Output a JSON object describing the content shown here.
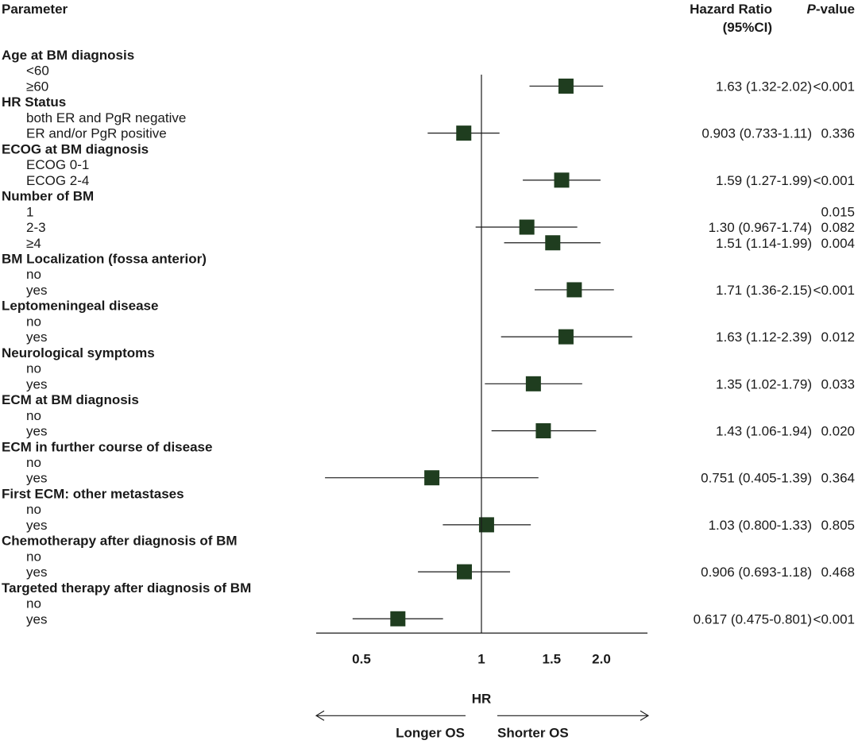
{
  "chart_data": {
    "type": "forest",
    "headers": {
      "parameter": "Parameter",
      "hr_line1": "Hazard Ratio",
      "hr_line2": "(95%CI)",
      "p_italic": "P",
      "p_rest": "-value"
    },
    "xscale": "log",
    "xlim": [
      0.38,
      2.5
    ],
    "xticks": [
      "0.5",
      "1",
      "1.5",
      "2.0"
    ],
    "xticks_values": [
      0.5,
      1,
      1.5,
      2.0
    ],
    "reference_line": 1,
    "xlabel": "HR",
    "arrow_left_label": "Longer OS",
    "arrow_right_label": "Shorter OS",
    "marker_color": "#1f3d1f",
    "groups": [
      {
        "name": "Age at BM diagnosis",
        "rows": [
          {
            "label": "<60"
          },
          {
            "label": "≥60",
            "hr": 1.63,
            "lo": 1.32,
            "hi": 2.02,
            "ci_text": "1.63 (1.32-2.02)",
            "p": "<0.001"
          }
        ]
      },
      {
        "name": "HR Status",
        "rows": [
          {
            "label": "both ER and PgR negative"
          },
          {
            "label": "ER and/or PgR positive",
            "hr": 0.903,
            "lo": 0.733,
            "hi": 1.11,
            "ci_text": "0.903 (0.733-1.11)",
            "p": "0.336"
          }
        ]
      },
      {
        "name": "ECOG at BM diagnosis",
        "rows": [
          {
            "label": "ECOG 0-1"
          },
          {
            "label": "ECOG 2-4",
            "hr": 1.59,
            "lo": 1.27,
            "hi": 1.99,
            "ci_text": "1.59 (1.27-1.99)",
            "p": "<0.001"
          }
        ]
      },
      {
        "name": "Number of BM",
        "rows": [
          {
            "label": "1",
            "p": "0.015"
          },
          {
            "label": "2-3",
            "hr": 1.3,
            "lo": 0.967,
            "hi": 1.74,
            "ci_text": "1.30 (0.967-1.74)",
            "p": "0.082"
          },
          {
            "label": "≥4",
            "hr": 1.51,
            "lo": 1.14,
            "hi": 1.99,
            "ci_text": "1.51 (1.14-1.99)",
            "p": "0.004"
          }
        ]
      },
      {
        "name": "BM Localization (fossa anterior)",
        "rows": [
          {
            "label": "no"
          },
          {
            "label": "yes",
            "hr": 1.71,
            "lo": 1.36,
            "hi": 2.15,
            "ci_text": "1.71 (1.36-2.15)",
            "p": "<0.001"
          }
        ]
      },
      {
        "name": "Leptomeningeal disease",
        "rows": [
          {
            "label": "no"
          },
          {
            "label": "yes",
            "hr": 1.63,
            "lo": 1.12,
            "hi": 2.39,
            "ci_text": "1.63 (1.12-2.39)",
            "p": "0.012"
          }
        ]
      },
      {
        "name": "Neurological symptoms",
        "rows": [
          {
            "label": "no"
          },
          {
            "label": "yes",
            "hr": 1.35,
            "lo": 1.02,
            "hi": 1.79,
            "ci_text": "1.35 (1.02-1.79)",
            "p": "0.033"
          }
        ]
      },
      {
        "name": "ECM at BM diagnosis",
        "rows": [
          {
            "label": "no"
          },
          {
            "label": "yes",
            "hr": 1.43,
            "lo": 1.06,
            "hi": 1.94,
            "ci_text": "1.43 (1.06-1.94)",
            "p": "0.020"
          }
        ]
      },
      {
        "name": "ECM in further course of disease",
        "rows": [
          {
            "label": "no"
          },
          {
            "label": "yes",
            "hr": 0.751,
            "lo": 0.405,
            "hi": 1.39,
            "ci_text": "0.751 (0.405-1.39)",
            "p": "0.364"
          }
        ]
      },
      {
        "name": "First ECM: other metastases",
        "rows": [
          {
            "label": "no"
          },
          {
            "label": "yes",
            "hr": 1.03,
            "lo": 0.8,
            "hi": 1.33,
            "ci_text": "1.03 (0.800-1.33)",
            "p": "0.805"
          }
        ]
      },
      {
        "name": "Chemotherapy after diagnosis of BM",
        "rows": [
          {
            "label": "no"
          },
          {
            "label": "yes",
            "hr": 0.906,
            "lo": 0.693,
            "hi": 1.18,
            "ci_text": "0.906 (0.693-1.18)",
            "p": "0.468"
          }
        ]
      },
      {
        "name": "Targeted therapy after diagnosis of BM",
        "rows": [
          {
            "label": "no"
          },
          {
            "label": "yes",
            "hr": 0.617,
            "lo": 0.475,
            "hi": 0.801,
            "ci_text": "0.617 (0.475-0.801)",
            "p": "<0.001"
          }
        ]
      }
    ]
  }
}
